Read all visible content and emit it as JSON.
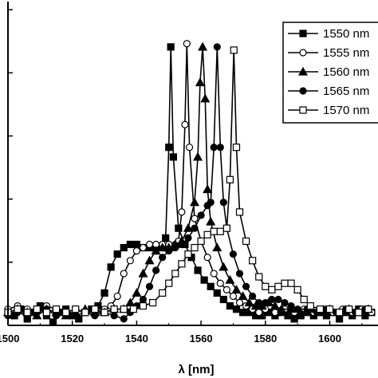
{
  "chart_data": {
    "type": "line",
    "xlabel": "λ [nm]",
    "ylabel": "",
    "xlim": [
      1500,
      1615
    ],
    "ylim": [
      0,
      1.0
    ],
    "x_ticks": [
      1500,
      1520,
      1540,
      1560,
      1580,
      1600
    ],
    "x_tick_labels": [
      "1500",
      "1520",
      "1540",
      "1560",
      "1580",
      "1600"
    ],
    "y_tick_count": 6,
    "grid": false,
    "legend_position": "top-right",
    "series": [
      {
        "name": "1550 nm",
        "marker": "square-filled",
        "points": [
          [
            1500,
            0.04
          ],
          [
            1502,
            0.03
          ],
          [
            1504,
            0.05
          ],
          [
            1506,
            0.02
          ],
          [
            1508,
            0.04
          ],
          [
            1510,
            0.06
          ],
          [
            1512,
            0.03
          ],
          [
            1514,
            0.01
          ],
          [
            1516,
            0.04
          ],
          [
            1518,
            0.05
          ],
          [
            1520,
            0.03
          ],
          [
            1522,
            0.02
          ],
          [
            1524,
            0.04
          ],
          [
            1526,
            0.05
          ],
          [
            1528,
            0.06
          ],
          [
            1530,
            0.1
          ],
          [
            1532,
            0.18
          ],
          [
            1534,
            0.22
          ],
          [
            1536,
            0.24
          ],
          [
            1538,
            0.25
          ],
          [
            1540,
            0.25
          ],
          [
            1542,
            0.24
          ],
          [
            1544,
            0.24
          ],
          [
            1546,
            0.24
          ],
          [
            1548,
            0.24
          ],
          [
            1549,
            0.27
          ],
          [
            1550,
            0.55
          ],
          [
            1550.6,
            0.86
          ],
          [
            1551.4,
            0.52
          ],
          [
            1553,
            0.3
          ],
          [
            1555,
            0.25
          ],
          [
            1557,
            0.21
          ],
          [
            1559,
            0.17
          ],
          [
            1561,
            0.14
          ],
          [
            1563,
            0.12
          ],
          [
            1565,
            0.1
          ],
          [
            1567,
            0.08
          ],
          [
            1569,
            0.06
          ],
          [
            1571,
            0.05
          ],
          [
            1573,
            0.04
          ],
          [
            1575,
            0.04
          ],
          [
            1577,
            0.03
          ],
          [
            1579,
            0.03
          ],
          [
            1581,
            0.04
          ],
          [
            1583,
            0.03
          ],
          [
            1585,
            0.04
          ],
          [
            1587,
            0.03
          ],
          [
            1589,
            0.02
          ],
          [
            1591,
            0.03
          ],
          [
            1593,
            0.04
          ],
          [
            1595,
            0.03
          ],
          [
            1597,
            0.04
          ],
          [
            1599,
            0.03
          ],
          [
            1601,
            0.04
          ],
          [
            1603,
            0.02
          ],
          [
            1605,
            0.04
          ],
          [
            1607,
            0.03
          ],
          [
            1609,
            0.05
          ],
          [
            1611,
            0.03
          ],
          [
            1613,
            0.04
          ]
        ]
      },
      {
        "name": "1555 nm",
        "marker": "circle-open",
        "points": [
          [
            1500,
            0.05
          ],
          [
            1503,
            0.06
          ],
          [
            1506,
            0.05
          ],
          [
            1509,
            0.04
          ],
          [
            1512,
            0.06
          ],
          [
            1515,
            0.05
          ],
          [
            1518,
            0.04
          ],
          [
            1521,
            0.05
          ],
          [
            1524,
            0.04
          ],
          [
            1527,
            0.04
          ],
          [
            1530,
            0.05
          ],
          [
            1532,
            0.06
          ],
          [
            1534,
            0.09
          ],
          [
            1536,
            0.16
          ],
          [
            1538,
            0.2
          ],
          [
            1540,
            0.23
          ],
          [
            1542,
            0.24
          ],
          [
            1544,
            0.25
          ],
          [
            1546,
            0.25
          ],
          [
            1548,
            0.25
          ],
          [
            1550,
            0.25
          ],
          [
            1552,
            0.25
          ],
          [
            1553,
            0.26
          ],
          [
            1554,
            0.35
          ],
          [
            1555,
            0.62
          ],
          [
            1555.6,
            0.87
          ],
          [
            1556.4,
            0.55
          ],
          [
            1558,
            0.33
          ],
          [
            1560,
            0.26
          ],
          [
            1562,
            0.21
          ],
          [
            1564,
            0.16
          ],
          [
            1566,
            0.13
          ],
          [
            1568,
            0.11
          ],
          [
            1570,
            0.09
          ],
          [
            1572,
            0.07
          ],
          [
            1574,
            0.06
          ],
          [
            1576,
            0.05
          ],
          [
            1578,
            0.04
          ],
          [
            1580,
            0.05
          ],
          [
            1583,
            0.04
          ],
          [
            1586,
            0.05
          ],
          [
            1589,
            0.04
          ],
          [
            1592,
            0.05
          ],
          [
            1595,
            0.04
          ],
          [
            1598,
            0.05
          ],
          [
            1601,
            0.04
          ],
          [
            1604,
            0.05
          ],
          [
            1607,
            0.04
          ],
          [
            1610,
            0.05
          ],
          [
            1613,
            0.04
          ]
        ]
      },
      {
        "name": "1560 nm",
        "marker": "triangle-filled",
        "points": [
          [
            1500,
            0.04
          ],
          [
            1503,
            0.05
          ],
          [
            1506,
            0.04
          ],
          [
            1509,
            0.03
          ],
          [
            1512,
            0.05
          ],
          [
            1515,
            0.04
          ],
          [
            1518,
            0.03
          ],
          [
            1521,
            0.04
          ],
          [
            1524,
            0.05
          ],
          [
            1527,
            0.04
          ],
          [
            1530,
            0.04
          ],
          [
            1533,
            0.05
          ],
          [
            1536,
            0.05
          ],
          [
            1538,
            0.07
          ],
          [
            1540,
            0.1
          ],
          [
            1542,
            0.16
          ],
          [
            1544,
            0.2
          ],
          [
            1546,
            0.23
          ],
          [
            1548,
            0.24
          ],
          [
            1550,
            0.24
          ],
          [
            1552,
            0.25
          ],
          [
            1554,
            0.26
          ],
          [
            1556,
            0.3
          ],
          [
            1558,
            0.38
          ],
          [
            1559,
            0.52
          ],
          [
            1559.7,
            0.75
          ],
          [
            1560.5,
            0.86
          ],
          [
            1561.3,
            0.7
          ],
          [
            1562,
            0.42
          ],
          [
            1563,
            0.32
          ],
          [
            1565,
            0.24
          ],
          [
            1567,
            0.18
          ],
          [
            1569,
            0.14
          ],
          [
            1571,
            0.11
          ],
          [
            1573,
            0.09
          ],
          [
            1575,
            0.07
          ],
          [
            1577,
            0.06
          ],
          [
            1579,
            0.06
          ],
          [
            1581,
            0.07
          ],
          [
            1583,
            0.06
          ],
          [
            1585,
            0.05
          ],
          [
            1588,
            0.05
          ],
          [
            1591,
            0.04
          ],
          [
            1594,
            0.05
          ],
          [
            1597,
            0.04
          ],
          [
            1600,
            0.05
          ],
          [
            1603,
            0.04
          ],
          [
            1606,
            0.05
          ],
          [
            1609,
            0.04
          ],
          [
            1612,
            0.05
          ]
        ]
      },
      {
        "name": "1565 nm",
        "marker": "circle-filled",
        "points": [
          [
            1500,
            0.03
          ],
          [
            1503,
            0.04
          ],
          [
            1506,
            0.03
          ],
          [
            1509,
            0.04
          ],
          [
            1512,
            0.05
          ],
          [
            1515,
            0.03
          ],
          [
            1518,
            0.04
          ],
          [
            1521,
            0.03
          ],
          [
            1524,
            0.04
          ],
          [
            1527,
            0.03
          ],
          [
            1530,
            0.04
          ],
          [
            1533,
            0.03
          ],
          [
            1536,
            0.02
          ],
          [
            1538,
            0.04
          ],
          [
            1540,
            0.06
          ],
          [
            1542,
            0.08
          ],
          [
            1544,
            0.12
          ],
          [
            1546,
            0.17
          ],
          [
            1548,
            0.21
          ],
          [
            1550,
            0.23
          ],
          [
            1552,
            0.24
          ],
          [
            1554,
            0.25
          ],
          [
            1556,
            0.27
          ],
          [
            1558,
            0.3
          ],
          [
            1560,
            0.34
          ],
          [
            1562,
            0.37
          ],
          [
            1563,
            0.38
          ],
          [
            1564,
            0.55
          ],
          [
            1565,
            0.86
          ],
          [
            1566,
            0.55
          ],
          [
            1567,
            0.38
          ],
          [
            1568,
            0.3
          ],
          [
            1570,
            0.22
          ],
          [
            1572,
            0.16
          ],
          [
            1574,
            0.12
          ],
          [
            1576,
            0.09
          ],
          [
            1578,
            0.07
          ],
          [
            1580,
            0.07
          ],
          [
            1582,
            0.08
          ],
          [
            1584,
            0.08
          ],
          [
            1586,
            0.07
          ],
          [
            1588,
            0.06
          ],
          [
            1590,
            0.05
          ],
          [
            1593,
            0.05
          ],
          [
            1596,
            0.04
          ],
          [
            1599,
            0.05
          ],
          [
            1602,
            0.04
          ],
          [
            1605,
            0.05
          ],
          [
            1608,
            0.04
          ],
          [
            1611,
            0.05
          ]
        ]
      },
      {
        "name": "1570 nm",
        "marker": "square-open",
        "points": [
          [
            1500,
            0.04
          ],
          [
            1503,
            0.05
          ],
          [
            1506,
            0.04
          ],
          [
            1509,
            0.05
          ],
          [
            1512,
            0.04
          ],
          [
            1515,
            0.05
          ],
          [
            1518,
            0.04
          ],
          [
            1521,
            0.05
          ],
          [
            1524,
            0.04
          ],
          [
            1527,
            0.05
          ],
          [
            1530,
            0.04
          ],
          [
            1533,
            0.05
          ],
          [
            1536,
            0.05
          ],
          [
            1539,
            0.05
          ],
          [
            1542,
            0.06
          ],
          [
            1545,
            0.07
          ],
          [
            1548,
            0.1
          ],
          [
            1550,
            0.13
          ],
          [
            1552,
            0.16
          ],
          [
            1554,
            0.19
          ],
          [
            1556,
            0.22
          ],
          [
            1558,
            0.24
          ],
          [
            1560,
            0.26
          ],
          [
            1562,
            0.28
          ],
          [
            1564,
            0.29
          ],
          [
            1566,
            0.29
          ],
          [
            1568,
            0.3
          ],
          [
            1569,
            0.45
          ],
          [
            1570.2,
            0.85
          ],
          [
            1571,
            0.55
          ],
          [
            1572,
            0.35
          ],
          [
            1574,
            0.26
          ],
          [
            1576,
            0.2
          ],
          [
            1578,
            0.15
          ],
          [
            1580,
            0.12
          ],
          [
            1582,
            0.11
          ],
          [
            1584,
            0.12
          ],
          [
            1586,
            0.13
          ],
          [
            1588,
            0.13
          ],
          [
            1590,
            0.11
          ],
          [
            1592,
            0.08
          ],
          [
            1594,
            0.06
          ],
          [
            1597,
            0.05
          ],
          [
            1600,
            0.05
          ],
          [
            1603,
            0.04
          ],
          [
            1606,
            0.05
          ],
          [
            1609,
            0.04
          ],
          [
            1612,
            0.05
          ]
        ]
      }
    ]
  }
}
